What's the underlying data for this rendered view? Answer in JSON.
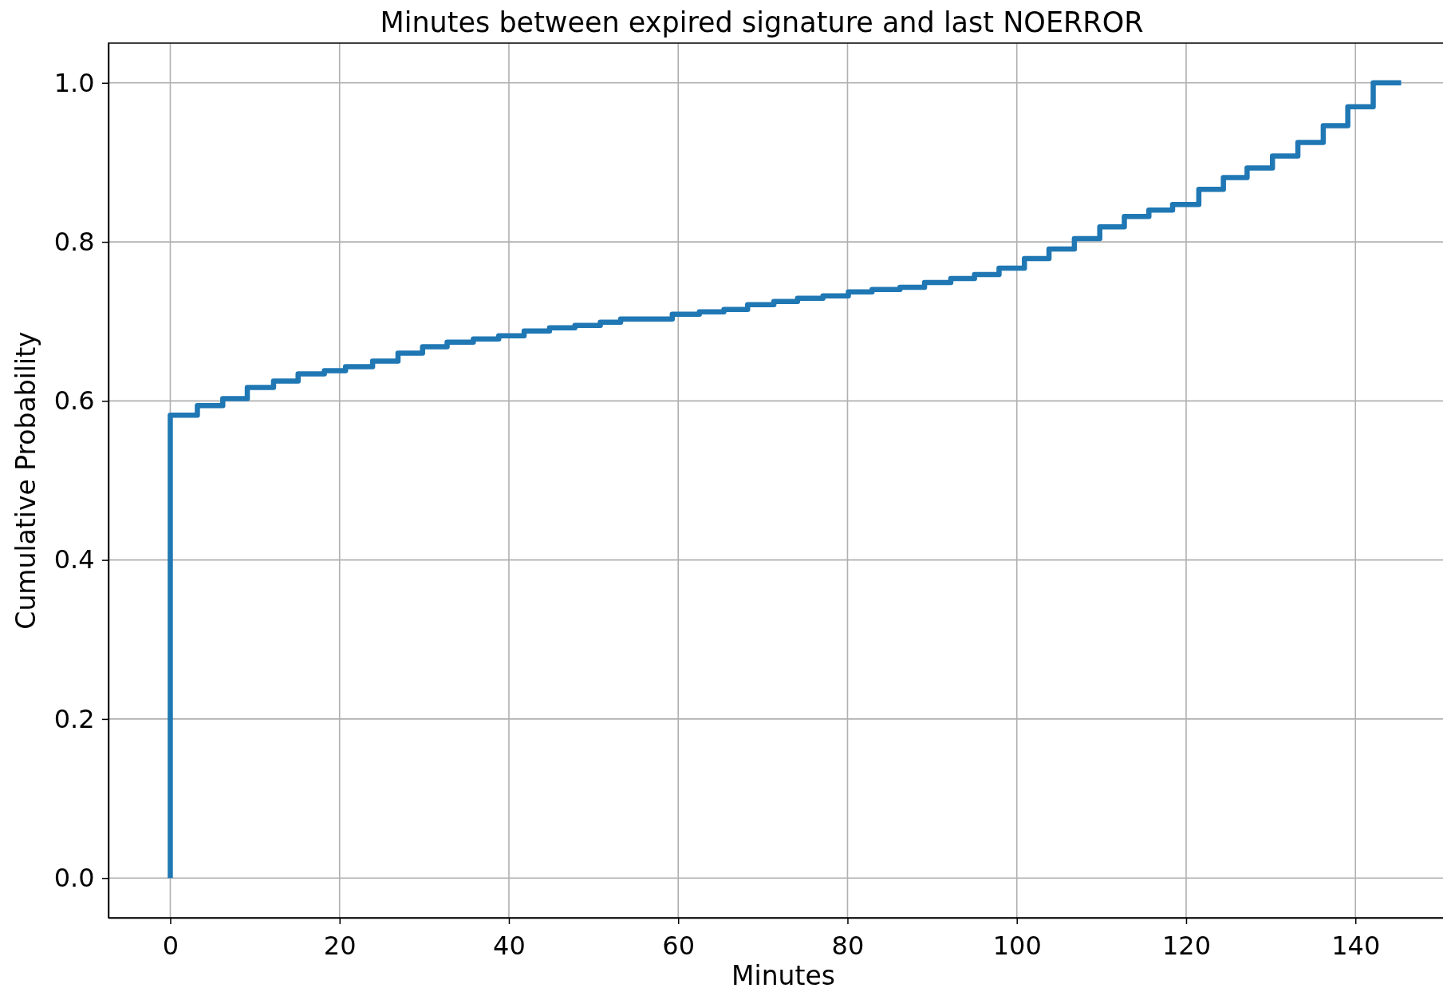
{
  "chart_data": {
    "type": "step",
    "title": "Minutes between expired signature and last NOERROR",
    "xlabel": "Minutes",
    "ylabel": "Cumulative Probability",
    "x": [
      0,
      0,
      3.2,
      6.2,
      9.1,
      12.2,
      15.1,
      18.2,
      20.7,
      23.9,
      26.9,
      29.8,
      32.7,
      35.8,
      38.8,
      41.8,
      44.8,
      47.8,
      50.8,
      53.2,
      59.3,
      62.5,
      65.4,
      68.2,
      71.3,
      74.1,
      77.1,
      80.1,
      82.9,
      86.2,
      89.1,
      92.2,
      95,
      97.9,
      100.9,
      103.8,
      106.8,
      109.8,
      112.7,
      115.6,
      118.4,
      121.5,
      124.4,
      127.2,
      130.2,
      133.2,
      136.2,
      139.1,
      142.1,
      145.4
    ],
    "series": [
      {
        "color": "#1f77b4",
        "values": [
          0,
          0.582,
          0.594,
          0.603,
          0.617,
          0.625,
          0.634,
          0.638,
          0.643,
          0.65,
          0.66,
          0.668,
          0.674,
          0.678,
          0.682,
          0.688,
          0.692,
          0.695,
          0.699,
          0.703,
          0.709,
          0.712,
          0.715,
          0.721,
          0.725,
          0.729,
          0.732,
          0.737,
          0.74,
          0.743,
          0.749,
          0.754,
          0.759,
          0.767,
          0.779,
          0.791,
          0.804,
          0.819,
          0.832,
          0.84,
          0.847,
          0.866,
          0.881,
          0.893,
          0.908,
          0.925,
          0.946,
          0.97,
          1.0,
          1.0
        ]
      }
    ],
    "xlim": [
      -7.3,
      152.7
    ],
    "ylim": [
      -0.05,
      1.05
    ],
    "xticks": [
      0,
      20,
      40,
      60,
      80,
      100,
      120,
      140
    ],
    "yticks": [
      {
        "value": 0,
        "label": "0.0"
      },
      {
        "value": 0.2,
        "label": "0.2"
      },
      {
        "value": 0.4,
        "label": "0.4"
      },
      {
        "value": 0.6,
        "label": "0.6"
      },
      {
        "value": 0.8,
        "label": "0.8"
      },
      {
        "value": 1,
        "label": "1.0"
      }
    ],
    "grid": true,
    "marker": "none",
    "line_style": "solid"
  }
}
